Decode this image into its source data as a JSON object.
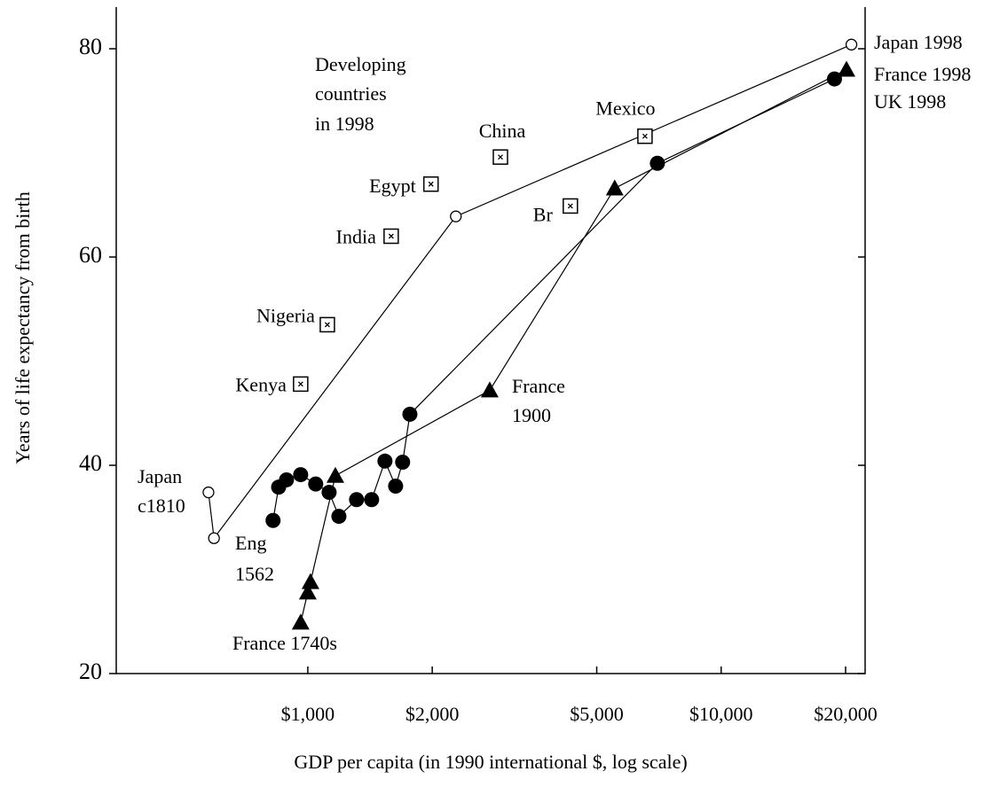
{
  "chart_data": {
    "type": "scatter",
    "x_label": "GDP per capita (in 1990 international $, log scale)",
    "y_label": "Years of life expectancy from birth",
    "log_x": true,
    "xlim": [
      344,
      22300
    ],
    "ylim": [
      20,
      84
    ],
    "xticks": [
      {
        "value": 1000,
        "label": "$1,000"
      },
      {
        "value": 2000,
        "label": "$2,000"
      },
      {
        "value": 5000,
        "label": "$5,000"
      },
      {
        "value": 10000,
        "label": "$10,000"
      },
      {
        "value": 20000,
        "label": "$20,000"
      }
    ],
    "yticks": [
      20,
      40,
      60,
      80
    ],
    "series": [
      {
        "marker": "circle-open",
        "connected": true,
        "color": "#000000",
        "x": [
          575,
          593,
          2281,
          20660
        ],
        "values": [
          37.4,
          33.0,
          63.9,
          80.4
        ]
      },
      {
        "marker": "circle",
        "connected": true,
        "color": "#000000",
        "x": [
          824,
          850,
          888,
          961,
          1045,
          1126,
          1189,
          1312,
          1427,
          1537,
          1631,
          1696,
          1766,
          7010,
          18800
        ],
        "values": [
          34.7,
          37.9,
          38.6,
          39.1,
          38.2,
          37.4,
          35.1,
          36.7,
          36.7,
          40.4,
          38.0,
          40.3,
          44.9,
          69.0,
          77.1
        ]
      },
      {
        "marker": "triangle",
        "connected": true,
        "color": "#000000",
        "x": [
          961,
          1000,
          1015,
          1166,
          2755,
          5527,
          20100
        ],
        "values": [
          24.9,
          27.8,
          28.8,
          39.0,
          47.2,
          66.6,
          78.0
        ]
      },
      {
        "marker": "square-x",
        "connected": false,
        "color": "#000000",
        "labels": [
          "Kenya",
          "Nigeria",
          "India",
          "Egypt",
          "China",
          "Br",
          "Mexico"
        ],
        "x": [
          961,
          1115,
          1591,
          1986,
          2924,
          4317,
          6542
        ],
        "values": [
          47.8,
          53.5,
          62.0,
          67.0,
          69.6,
          64.9,
          71.6
        ]
      }
    ],
    "annotations": [
      "Japan 1998",
      "France 1998",
      "UK 1998",
      "Developing",
      "countries",
      "in 1998",
      "France",
      "1900",
      "Japan",
      "c1810",
      "Eng",
      "1562",
      "France 1740s"
    ]
  }
}
